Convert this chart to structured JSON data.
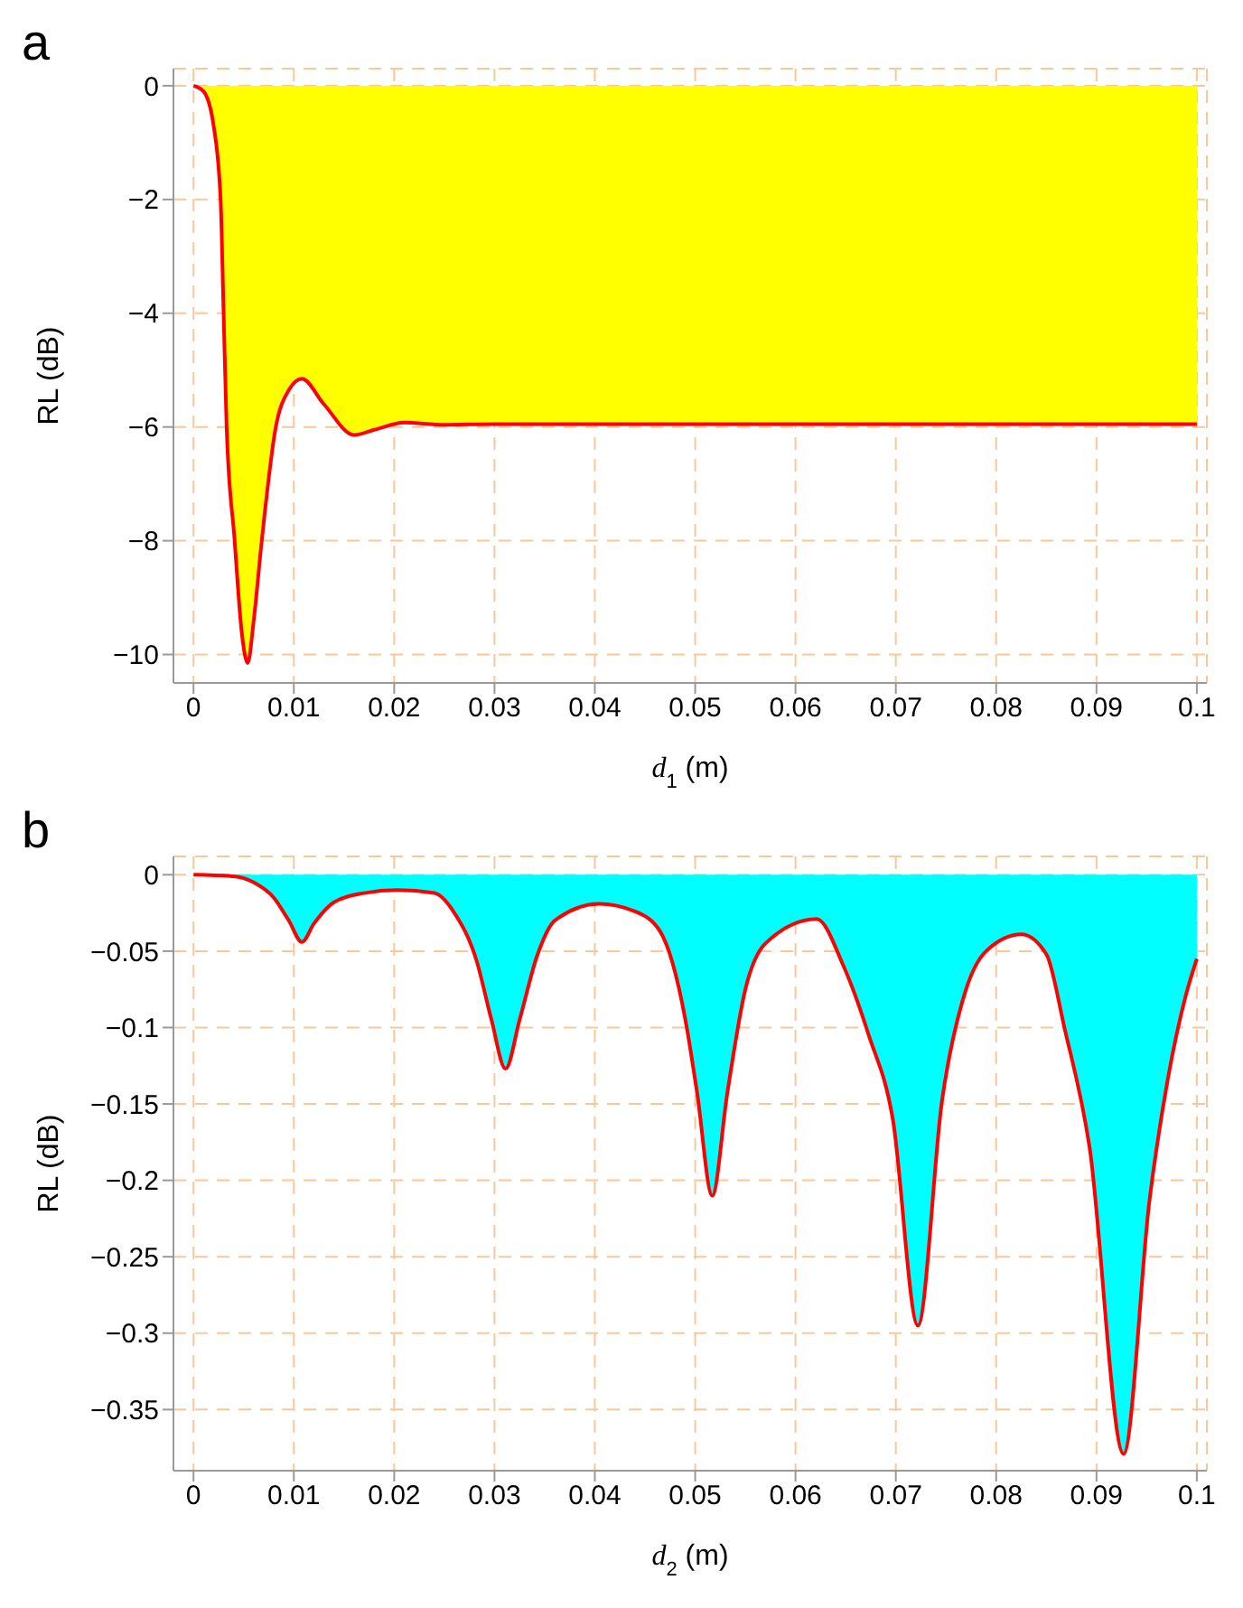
{
  "chart_data": [
    {
      "type": "area",
      "title": "a",
      "xlabel": "d$_{1}$ (m)",
      "ylabel": "RL (dB)",
      "grid": true,
      "x": [
        0,
        0.001,
        0.002,
        0.0027,
        0.003,
        0.0033,
        0.0041,
        0.0048,
        0.0054,
        0.006,
        0.0068,
        0.0082,
        0.0095,
        0.0108,
        0.013,
        0.016,
        0.018,
        0.021,
        0.025,
        0.03,
        0.1
      ],
      "series": [
        {
          "color": "#ffff00",
          "values": [
            0,
            -0.1,
            -0.7,
            -2,
            -4,
            -6,
            -8,
            -9.6,
            -10.15,
            -9.4,
            -8,
            -6,
            -5.35,
            -5.15,
            -5.6,
            -6.14,
            -6.05,
            -5.92,
            -5.96,
            -5.95,
            -5.95
          ]
        }
      ],
      "xlim": [
        -0.002,
        0.101
      ],
      "ylim": [
        -10.5,
        0.3
      ],
      "xticks": [
        0,
        0.01,
        0.02,
        0.03,
        0.04,
        0.05,
        0.06,
        0.07,
        0.08,
        0.09,
        0.1
      ],
      "yticks": [
        {
          "value": -10,
          "label": "−10"
        },
        {
          "value": -8,
          "label": "−8"
        },
        {
          "value": -6,
          "label": "−6"
        },
        {
          "value": -4,
          "label": "−4"
        },
        {
          "value": -2,
          "label": "−2"
        },
        0
      ]
    },
    {
      "type": "area",
      "title": "b",
      "xlabel": "d$_{2}$ (m)",
      "ylabel": "RL (dB)",
      "grid": true,
      "x": [
        0,
        0.004,
        0.006,
        0.008,
        0.0095,
        0.0108,
        0.012,
        0.014,
        0.017,
        0.0203,
        0.024,
        0.026,
        0.0282,
        0.0297,
        0.0311,
        0.0325,
        0.0343,
        0.036,
        0.0404,
        0.044,
        0.0465,
        0.049,
        0.0502,
        0.0517,
        0.0532,
        0.055,
        0.057,
        0.0621,
        0.0648,
        0.0673,
        0.0697,
        0.0722,
        0.0746,
        0.077,
        0.079,
        0.0825,
        0.085,
        0.0868,
        0.0893,
        0.0927,
        0.0953,
        0.0971,
        0.0989,
        0.1
      ],
      "series": [
        {
          "color": "#00ffff",
          "values": [
            0,
            -0.001,
            -0.005,
            -0.015,
            -0.03,
            -0.044,
            -0.032,
            -0.018,
            -0.012,
            -0.01,
            -0.012,
            -0.025,
            -0.056,
            -0.095,
            -0.127,
            -0.095,
            -0.052,
            -0.03,
            -0.019,
            -0.024,
            -0.037,
            -0.094,
            -0.143,
            -0.21,
            -0.143,
            -0.075,
            -0.045,
            -0.029,
            -0.06,
            -0.105,
            -0.16,
            -0.295,
            -0.148,
            -0.075,
            -0.05,
            -0.039,
            -0.052,
            -0.1,
            -0.178,
            -0.379,
            -0.212,
            -0.134,
            -0.079,
            -0.055
          ]
        }
      ],
      "xlim": [
        -0.002,
        0.101
      ],
      "ylim": [
        -0.39,
        0.012
      ],
      "xticks": [
        0,
        0.01,
        0.02,
        0.03,
        0.04,
        0.05,
        0.06,
        0.07,
        0.08,
        0.09,
        0.1
      ],
      "yticks": [
        {
          "value": -0.35,
          "label": "−0.35"
        },
        {
          "value": -0.3,
          "label": "−0.3"
        },
        {
          "value": -0.25,
          "label": "−0.25"
        },
        {
          "value": -0.2,
          "label": "−0.2"
        },
        {
          "value": -0.15,
          "label": "−0.15"
        },
        {
          "value": -0.1,
          "label": "−0.1"
        },
        {
          "value": -0.05,
          "label": "−0.05"
        },
        0
      ]
    }
  ]
}
